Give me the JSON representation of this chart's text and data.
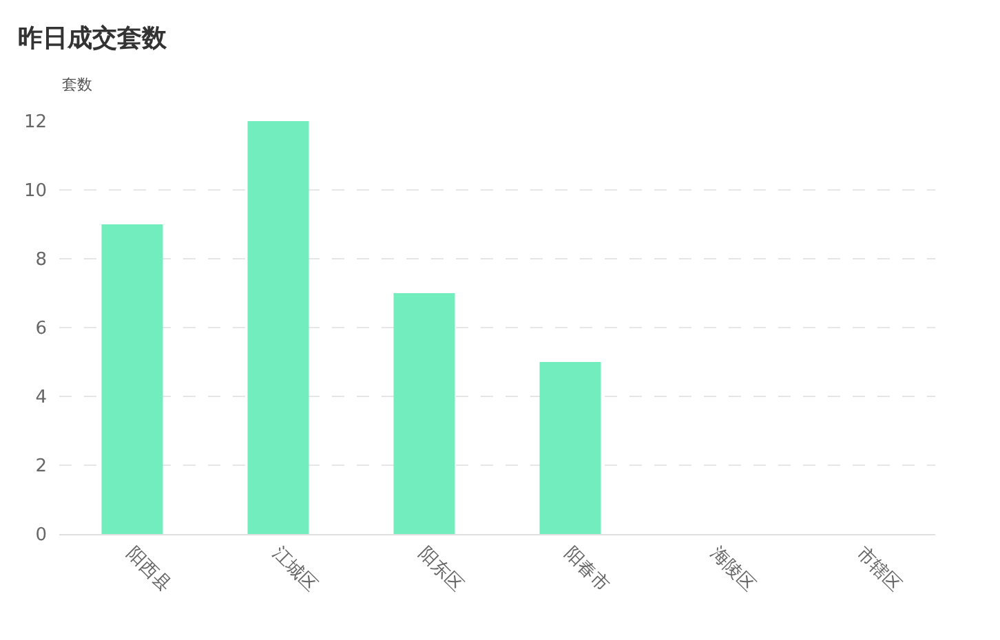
{
  "chart_data": {
    "type": "bar",
    "title": "昨日成交套数",
    "ylabel": "套数",
    "categories": [
      "阳西县",
      "江城区",
      "阳东区",
      "阳春市",
      "海陵区",
      "市辖区"
    ],
    "values": [
      9,
      12,
      7,
      5,
      0,
      0
    ],
    "color": "#72edbe",
    "ylim": [
      0,
      12
    ],
    "yticks": [
      0,
      2,
      4,
      6,
      8,
      10,
      12
    ],
    "grid": "y"
  }
}
